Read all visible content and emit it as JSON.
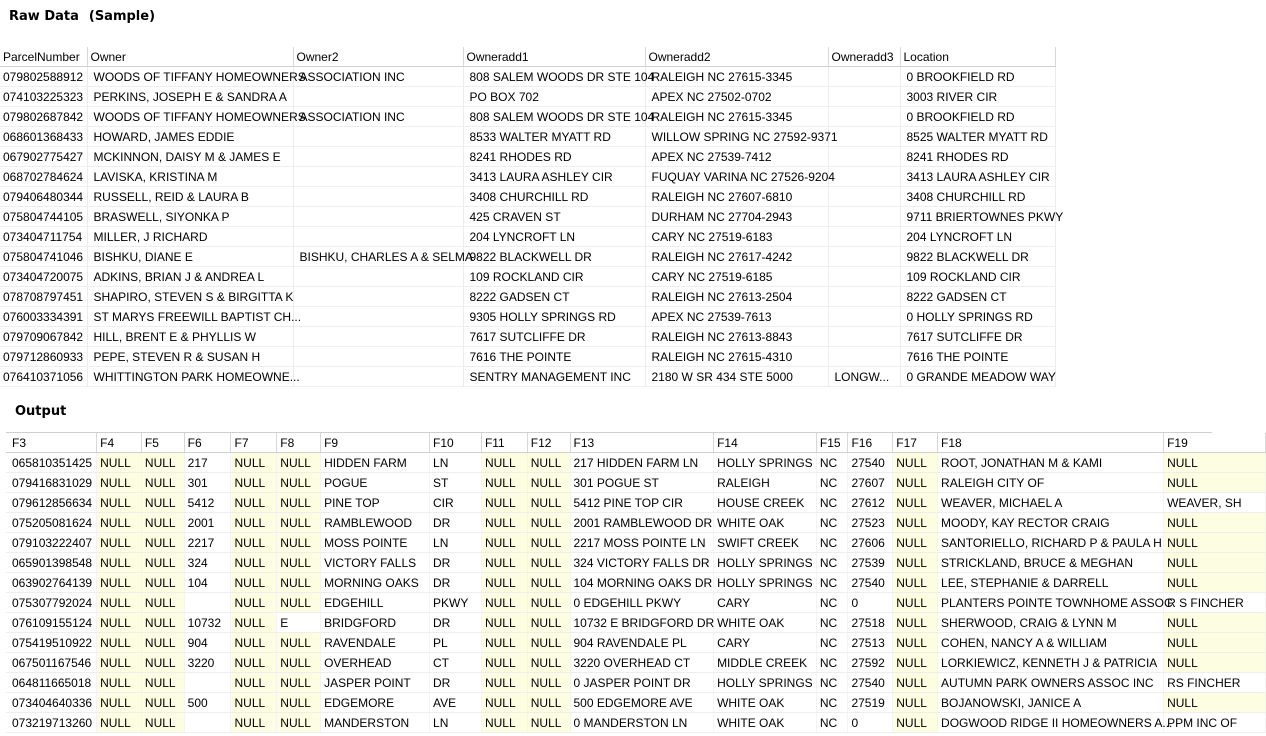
{
  "raw_section": {
    "title": "Raw Data",
    "subtitle": "(Sample)"
  },
  "output_section": {
    "title": "Output"
  },
  "raw_table": {
    "headers": [
      "ParcelNumber",
      "Owner",
      "Owner2",
      "Owneradd1",
      "Owneradd2",
      "Owneradd3",
      "Location"
    ],
    "rows": [
      [
        "079802588912",
        "WOODS OF TIFFANY HOMEOWNERS",
        "ASSOCIATION INC",
        "808 SALEM WOODS DR STE 104",
        "RALEIGH NC 27615-3345",
        "",
        "0 BROOKFIELD RD"
      ],
      [
        "074103225323",
        "PERKINS, JOSEPH E & SANDRA A",
        "",
        "PO BOX 702",
        "APEX NC 27502-0702",
        "",
        "3003 RIVER CIR"
      ],
      [
        "079802687842",
        "WOODS OF TIFFANY HOMEOWNERS",
        "ASSOCIATION INC",
        "808 SALEM WOODS DR STE 104",
        "RALEIGH NC 27615-3345",
        "",
        "0 BROOKFIELD RD"
      ],
      [
        "068601368433",
        "HOWARD, JAMES EDDIE",
        "",
        "8533 WALTER MYATT RD",
        "WILLOW SPRING NC 27592-9371",
        "",
        "8525 WALTER MYATT RD"
      ],
      [
        "067902775427",
        "MCKINNON, DAISY M & JAMES E",
        "",
        "8241 RHODES RD",
        "APEX NC 27539-7412",
        "",
        "8241 RHODES RD"
      ],
      [
        "068702784624",
        "LAVISKA, KRISTINA M",
        "",
        "3413 LAURA ASHLEY CIR",
        "FUQUAY VARINA NC 27526-9204",
        "",
        "3413 LAURA ASHLEY CIR"
      ],
      [
        "079406480344",
        "RUSSELL, REID & LAURA B",
        "",
        "3408 CHURCHILL RD",
        "RALEIGH NC 27607-6810",
        "",
        "3408 CHURCHILL RD"
      ],
      [
        "075804744105",
        "BRASWELL, SIYONKA P",
        "",
        "425 CRAVEN ST",
        "DURHAM NC 27704-2943",
        "",
        "9711 BRIERTOWNES PKWY"
      ],
      [
        "073404711754",
        "MILLER, J RICHARD",
        "",
        "204 LYNCROFT LN",
        "CARY NC 27519-6183",
        "",
        "204 LYNCROFT LN"
      ],
      [
        "075804741046",
        "BISHKU, DIANE E",
        "BISHKU, CHARLES A & SELMA",
        "9822 BLACKWELL DR",
        "RALEIGH NC 27617-4242",
        "",
        "9822 BLACKWELL DR"
      ],
      [
        "073404720075",
        "ADKINS, BRIAN J & ANDREA L",
        "",
        "109 ROCKLAND CIR",
        "CARY NC 27519-6185",
        "",
        "109 ROCKLAND CIR"
      ],
      [
        "078708797451",
        "SHAPIRO, STEVEN S & BIRGITTA K",
        "",
        "8222 GADSEN CT",
        "RALEIGH NC 27613-2504",
        "",
        "8222 GADSEN CT"
      ],
      [
        "076003334391",
        "ST MARYS FREEWILL BAPTIST CH...",
        "",
        "9305 HOLLY SPRINGS RD",
        "APEX NC 27539-7613",
        "",
        "0 HOLLY SPRINGS RD"
      ],
      [
        "079709067842",
        "HILL, BRENT E & PHYLLIS W",
        "",
        "7617 SUTCLIFFE DR",
        "RALEIGH NC 27613-8843",
        "",
        "7617 SUTCLIFFE DR"
      ],
      [
        "079712860933",
        "PEPE, STEVEN R & SUSAN H",
        "",
        "7616 THE POINTE",
        "RALEIGH NC 27615-4310",
        "",
        "7616 THE POINTE"
      ],
      [
        "076410371056",
        "WHITTINGTON PARK HOMEOWNE...",
        "",
        "SENTRY MANAGEMENT INC",
        "2180 W SR 434 STE 5000",
        "LONGW...",
        "0 GRANDE MEADOW WAY"
      ]
    ]
  },
  "output_table": {
    "headers": [
      "F3",
      "F4",
      "F5",
      "F6",
      "F7",
      "F8",
      "F9",
      "F10",
      "F11",
      "F12",
      "F13",
      "F14",
      "F15",
      "F16",
      "F17",
      "F18",
      "F19"
    ],
    "rows": [
      [
        "065810351425",
        "NULL",
        "NULL",
        "217",
        "NULL",
        "NULL",
        "HIDDEN FARM",
        "LN",
        "NULL",
        "NULL",
        "217 HIDDEN FARM LN",
        "HOLLY SPRINGS",
        "NC",
        "27540",
        "NULL",
        "ROOT, JONATHAN M & KAMI",
        "NULL"
      ],
      [
        "079416831029",
        "NULL",
        "NULL",
        "301",
        "NULL",
        "NULL",
        "POGUE",
        "ST",
        "NULL",
        "NULL",
        "301 POGUE ST",
        "RALEIGH",
        "NC",
        "27607",
        "NULL",
        "RALEIGH CITY OF",
        "NULL"
      ],
      [
        "079612856634",
        "NULL",
        "NULL",
        "5412",
        "NULL",
        "NULL",
        "PINE TOP",
        "CIR",
        "NULL",
        "NULL",
        "5412 PINE TOP CIR",
        "HOUSE CREEK",
        "NC",
        "27612",
        "NULL",
        "WEAVER, MICHAEL A",
        "WEAVER, SH"
      ],
      [
        "075205081624",
        "NULL",
        "NULL",
        "2001",
        "NULL",
        "NULL",
        "RAMBLEWOOD",
        "DR",
        "NULL",
        "NULL",
        "2001 RAMBLEWOOD DR",
        "WHITE OAK",
        "NC",
        "27523",
        "NULL",
        "MOODY, KAY RECTOR CRAIG",
        "NULL"
      ],
      [
        "079103222407",
        "NULL",
        "NULL",
        "2217",
        "NULL",
        "NULL",
        "MOSS POINTE",
        "LN",
        "NULL",
        "NULL",
        "2217 MOSS POINTE LN",
        "SWIFT CREEK",
        "NC",
        "27606",
        "NULL",
        "SANTORIELLO, RICHARD P & PAULA H",
        "NULL"
      ],
      [
        "065901398548",
        "NULL",
        "NULL",
        "324",
        "NULL",
        "NULL",
        "VICTORY FALLS",
        "DR",
        "NULL",
        "NULL",
        "324 VICTORY FALLS DR",
        "HOLLY SPRINGS",
        "NC",
        "27539",
        "NULL",
        "STRICKLAND, BRUCE & MEGHAN",
        "NULL"
      ],
      [
        "063902764139",
        "NULL",
        "NULL",
        "104",
        "NULL",
        "NULL",
        "MORNING OAKS",
        "DR",
        "NULL",
        "NULL",
        "104 MORNING OAKS DR",
        "HOLLY SPRINGS",
        "NC",
        "27540",
        "NULL",
        "LEE, STEPHANIE & DARRELL",
        "NULL"
      ],
      [
        "075307792024",
        "NULL",
        "NULL",
        "",
        "NULL",
        "NULL",
        "EDGEHILL",
        "PKWY",
        "NULL",
        "NULL",
        "0 EDGEHILL PKWY",
        "CARY",
        "NC",
        "0",
        "NULL",
        "PLANTERS POINTE TOWNHOME ASSOC",
        "R S FINCHER"
      ],
      [
        "076109155124",
        "NULL",
        "NULL",
        "10732",
        "NULL",
        "E",
        "BRIDGFORD",
        "DR",
        "NULL",
        "NULL",
        "10732 E BRIDGFORD DR",
        "WHITE OAK",
        "NC",
        "27518",
        "NULL",
        "SHERWOOD, CRAIG & LYNN M",
        "NULL"
      ],
      [
        "075419510922",
        "NULL",
        "NULL",
        "904",
        "NULL",
        "NULL",
        "RAVENDALE",
        "PL",
        "NULL",
        "NULL",
        "904 RAVENDALE PL",
        "CARY",
        "NC",
        "27513",
        "NULL",
        "COHEN, NANCY A & WILLIAM",
        "NULL"
      ],
      [
        "067501167546",
        "NULL",
        "NULL",
        "3220",
        "NULL",
        "NULL",
        "OVERHEAD",
        "CT",
        "NULL",
        "NULL",
        "3220 OVERHEAD CT",
        "MIDDLE CREEK",
        "NC",
        "27592",
        "NULL",
        "LORKIEWICZ, KENNETH J & PATRICIA",
        "NULL"
      ],
      [
        "064811665018",
        "NULL",
        "NULL",
        "",
        "NULL",
        "NULL",
        "JASPER POINT",
        "DR",
        "NULL",
        "NULL",
        "0 JASPER POINT DR",
        "HOLLY SPRINGS",
        "NC",
        "27540",
        "NULL",
        "AUTUMN PARK OWNERS ASSOC INC",
        "RS FINCHER"
      ],
      [
        "073404640336",
        "NULL",
        "NULL",
        "500",
        "NULL",
        "NULL",
        "EDGEMORE",
        "AVE",
        "NULL",
        "NULL",
        "500 EDGEMORE AVE",
        "WHITE OAK",
        "NC",
        "27519",
        "NULL",
        "BOJANOWSKI, JANICE A",
        "NULL"
      ],
      [
        "073219713260",
        "NULL",
        "NULL",
        "",
        "NULL",
        "NULL",
        "MANDERSTON",
        "LN",
        "NULL",
        "NULL",
        "0 MANDERSTON LN",
        "WHITE OAK",
        "NC",
        "0",
        "NULL",
        "DOGWOOD RIDGE II HOMEOWNERS A...",
        "PPM INC OF"
      ]
    ]
  }
}
